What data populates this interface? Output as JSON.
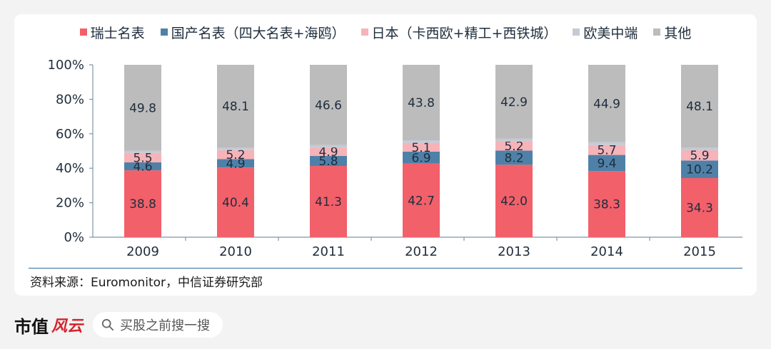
{
  "legend": {
    "items": [
      {
        "label": "瑞士名表",
        "color": "#f2606a"
      },
      {
        "label": "国产名表（四大名表+海鸥）",
        "color": "#4f81a8"
      },
      {
        "label": "日本（卡西欧+精工+西铁城）",
        "color": "#f6b3b8"
      },
      {
        "label": "欧美中端",
        "color": "#c4cbd6"
      },
      {
        "label": "其他",
        "color": "#bcbcbc"
      }
    ]
  },
  "chart_data": {
    "type": "bar",
    "stacked": true,
    "categories": [
      "2009",
      "2010",
      "2011",
      "2012",
      "2013",
      "2014",
      "2015"
    ],
    "series": [
      {
        "name": "瑞士名表",
        "values": [
          38.8,
          40.4,
          41.3,
          42.7,
          42.0,
          38.3,
          34.3
        ],
        "labels": [
          "38.8",
          "40.4",
          "41.3",
          "42.7",
          "42.0",
          "38.3",
          "34.3"
        ]
      },
      {
        "name": "国产名表（四大名表+海鸥）",
        "values": [
          4.6,
          4.9,
          5.8,
          6.9,
          8.2,
          9.4,
          10.2
        ],
        "labels": [
          "4.6",
          "4.9",
          "5.8",
          "6.9",
          "8.2",
          "9.4",
          "10.2"
        ]
      },
      {
        "name": "日本（卡西欧+精工+西铁城）",
        "values": [
          5.5,
          5.2,
          4.9,
          5.1,
          5.2,
          5.7,
          5.9
        ],
        "labels": [
          "5.5",
          "5.2",
          "4.9",
          "5.1",
          "5.2",
          "5.7",
          "5.9"
        ]
      },
      {
        "name": "欧美中端",
        "values": [
          1.3,
          1.4,
          1.4,
          1.5,
          1.7,
          1.7,
          1.5
        ],
        "labels": []
      },
      {
        "name": "其他",
        "values": [
          49.8,
          48.1,
          46.6,
          43.8,
          42.9,
          44.9,
          48.1
        ],
        "labels": [
          "49.8",
          "48.1",
          "46.6",
          "43.8",
          "42.9",
          "44.9",
          "48.1"
        ]
      }
    ],
    "ylim": [
      0,
      100
    ],
    "yticks": [
      "0%",
      "20%",
      "40%",
      "60%",
      "80%",
      "100%"
    ],
    "grid": false,
    "legend_position": "top"
  },
  "source": "资料来源：Euromonitor，中信证券研究部",
  "footer": {
    "brand": "市值",
    "brand_logo": "风云",
    "search_placeholder": "买股之前搜一搜"
  }
}
